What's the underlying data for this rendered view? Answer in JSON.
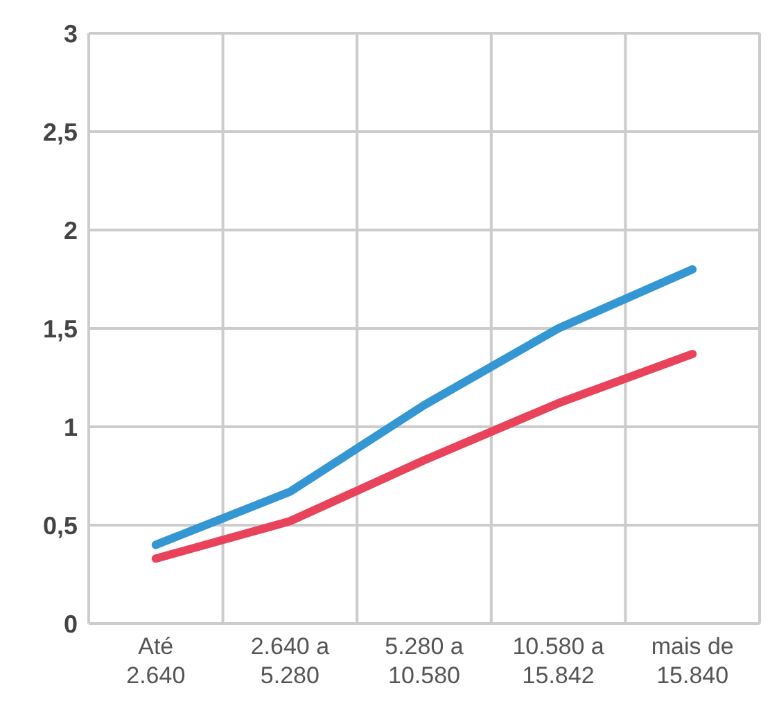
{
  "chart_data": {
    "type": "line",
    "categories": [
      "Até 2.640",
      "2.640 a 5.280",
      "5.280 a 10.580",
      "10.580 a 15.842",
      "mais de 15.840"
    ],
    "series": [
      {
        "color": "#3497d3",
        "values": [
          0.4,
          0.67,
          1.11,
          1.5,
          1.8
        ]
      },
      {
        "color": "#e8435a",
        "values": [
          0.33,
          0.52,
          0.83,
          1.12,
          1.37
        ]
      }
    ],
    "ylim": [
      0,
      3
    ],
    "yticks": [
      0,
      {
        "value": 0.5,
        "label": "0,5"
      },
      1,
      {
        "value": 1.5,
        "label": "1,5"
      },
      2,
      {
        "value": 2.5,
        "label": "2,5"
      },
      3
    ],
    "grid": true,
    "marker": "none",
    "line_style": "solid"
  }
}
